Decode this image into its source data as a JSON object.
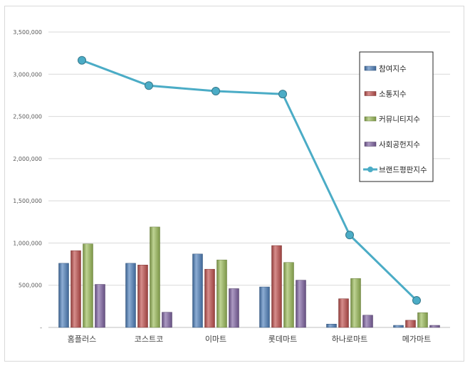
{
  "chart_data": {
    "type": "bar",
    "title": "",
    "xlabel": "",
    "ylabel": "",
    "ylim": [
      0,
      3500000
    ],
    "y_ticks": [
      "-",
      "500,000",
      "1,000,000",
      "1,500,000",
      "2,000,000",
      "2,500,000",
      "3,000,000",
      "3,500,000"
    ],
    "categories": [
      "홈플러스",
      "코스트코",
      "이마트",
      "롯데마트",
      "하나로마트",
      "메가마트"
    ],
    "series": [
      {
        "name": "참여지수",
        "type": "bar",
        "color": "#4f81bd",
        "values": [
          760000,
          760000,
          870000,
          480000,
          40000,
          25000
        ]
      },
      {
        "name": "소통지수",
        "type": "bar",
        "color": "#c0504d",
        "values": [
          910000,
          740000,
          690000,
          970000,
          340000,
          85000
        ]
      },
      {
        "name": "커뮤니티지수",
        "type": "bar",
        "color": "#9bbb59",
        "values": [
          990000,
          1190000,
          800000,
          770000,
          580000,
          175000
        ]
      },
      {
        "name": "사회공헌지수",
        "type": "bar",
        "color": "#8064a2",
        "values": [
          510000,
          180000,
          460000,
          560000,
          145000,
          25000
        ]
      },
      {
        "name": "브랜드평판지수",
        "type": "line",
        "color": "#4bacc6",
        "values": [
          3165000,
          2865000,
          2800000,
          2765000,
          1095000,
          320000
        ]
      }
    ],
    "grid": true,
    "legend_position": "right"
  }
}
